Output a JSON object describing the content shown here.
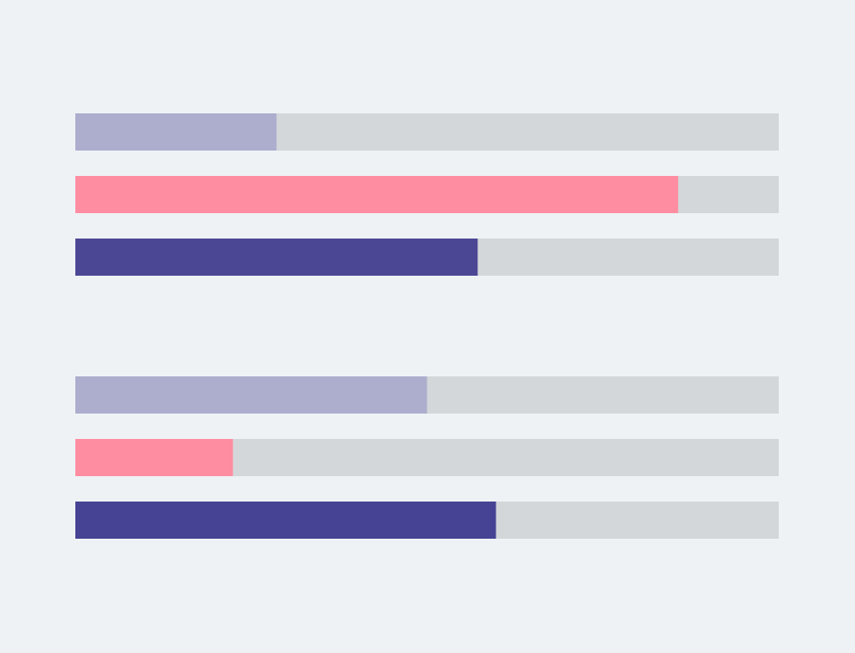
{
  "chart_data": {
    "type": "bar",
    "orientation": "horizontal",
    "style": "progress-bars",
    "xlim": [
      0,
      100
    ],
    "track_color": "#d3d7da",
    "background_color": "#eef2f5",
    "groups": [
      {
        "bars": [
          {
            "value": 28.6,
            "color": "#adadcd"
          },
          {
            "value": 85.7,
            "color": "#ff8da1"
          },
          {
            "value": 57.2,
            "color": "#4c4795"
          }
        ]
      },
      {
        "bars": [
          {
            "value": 50.0,
            "color": "#adadcd"
          },
          {
            "value": 22.4,
            "color": "#ff8da1"
          },
          {
            "value": 59.8,
            "color": "#464394"
          }
        ]
      }
    ]
  }
}
